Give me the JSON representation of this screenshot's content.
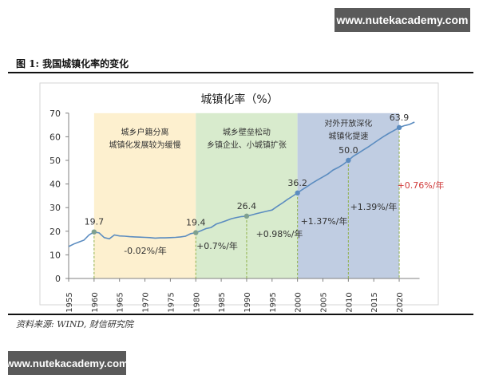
{
  "watermark": {
    "top": "www.nutekacademy.com",
    "bottom": "www.nutekacademy.com"
  },
  "figure": {
    "title": "图 1:  我国城镇化率的变化",
    "source": "资料来源:  WIND,  财信研究院"
  },
  "chart_data": {
    "type": "line",
    "title": "城镇化率（%）",
    "xlabel": "",
    "ylabel": "",
    "xlim": [
      1955,
      2024
    ],
    "ylim": [
      0,
      70
    ],
    "yticks": [
      0,
      10,
      20,
      30,
      40,
      50,
      60,
      70
    ],
    "xticks": [
      1955,
      1960,
      1965,
      1970,
      1975,
      1980,
      1985,
      1990,
      1995,
      2000,
      2005,
      2010,
      2015,
      2020
    ],
    "grid": false,
    "legend": "none",
    "series": [
      {
        "name": "城镇化率",
        "color": "#5b8cc0",
        "x": [
          1955,
          1956,
          1957,
          1958,
          1959,
          1960,
          1961,
          1962,
          1963,
          1964,
          1965,
          1966,
          1967,
          1968,
          1969,
          1970,
          1971,
          1972,
          1973,
          1974,
          1975,
          1976,
          1977,
          1978,
          1979,
          1980,
          1981,
          1982,
          1983,
          1984,
          1985,
          1986,
          1987,
          1988,
          1989,
          1990,
          1991,
          1992,
          1993,
          1994,
          1995,
          1996,
          1997,
          1998,
          1999,
          2000,
          2001,
          2002,
          2003,
          2004,
          2005,
          2006,
          2007,
          2008,
          2009,
          2010,
          2011,
          2012,
          2013,
          2014,
          2015,
          2016,
          2017,
          2018,
          2019,
          2020,
          2021,
          2022,
          2023
        ],
        "values": [
          13.5,
          14.6,
          15.4,
          16.2,
          18.4,
          19.7,
          19.3,
          17.3,
          16.8,
          18.4,
          18.0,
          17.9,
          17.7,
          17.6,
          17.5,
          17.4,
          17.3,
          17.1,
          17.2,
          17.2,
          17.3,
          17.4,
          17.6,
          17.9,
          19.0,
          19.4,
          20.2,
          21.1,
          21.6,
          23.0,
          23.7,
          24.5,
          25.3,
          25.8,
          26.2,
          26.4,
          26.9,
          27.5,
          28.0,
          28.5,
          29.0,
          30.5,
          31.9,
          33.4,
          34.8,
          36.2,
          37.7,
          39.1,
          40.5,
          41.8,
          43.0,
          44.3,
          45.9,
          47.0,
          48.3,
          50.0,
          51.8,
          53.1,
          54.5,
          55.8,
          57.3,
          58.8,
          60.2,
          61.5,
          62.7,
          63.9,
          64.7,
          65.2,
          66.2
        ]
      }
    ],
    "highlighted_points": [
      {
        "x": 1960,
        "value": 19.7,
        "label": "19.7"
      },
      {
        "x": 1980,
        "value": 19.4,
        "label": "19.4"
      },
      {
        "x": 1990,
        "value": 26.4,
        "label": "26.4"
      },
      {
        "x": 2000,
        "value": 36.2,
        "label": "36.2"
      },
      {
        "x": 2010,
        "value": 50.0,
        "label": "50.0"
      },
      {
        "x": 2020,
        "value": 63.9,
        "label": "63.9"
      }
    ],
    "periods": [
      {
        "start": 1960,
        "end": 1980,
        "color": "#fdf0cf",
        "line1": "城乡户籍分离",
        "line2": "城镇化发展较为缓慢"
      },
      {
        "start": 1980,
        "end": 2000,
        "color": "#d8ebcd",
        "line1": "城乡壁垒松动",
        "line2": "乡镇企业、小城镇扩张"
      },
      {
        "start": 2000,
        "end": 2020,
        "color": "#c0cde2",
        "line1": "对外开放深化",
        "line2": "城镇化提速"
      }
    ],
    "growth_annotations": [
      {
        "text": "-0.02%/年",
        "period": "1960-1980",
        "color": "#333333"
      },
      {
        "text": "+0.7%/年",
        "period": "1980-1990",
        "color": "#333333"
      },
      {
        "text": "+0.98%/年",
        "period": "1990-2000",
        "color": "#333333"
      },
      {
        "text": "+1.37%/年",
        "period": "2000-2010",
        "color": "#333333"
      },
      {
        "text": "+1.39%/年",
        "period": "2010-2020",
        "color": "#333333"
      },
      {
        "text": "+0.76%/年",
        "period": "2020-",
        "color": "#d03a3a"
      }
    ]
  }
}
